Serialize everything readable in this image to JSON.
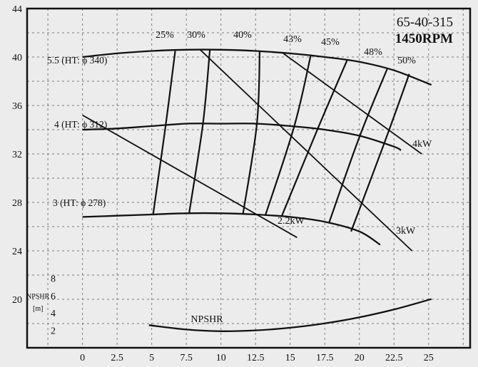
{
  "chart_data": {
    "type": "line",
    "title": "65-40-315",
    "subtitle": "1450RPM",
    "xlabel": "",
    "ylabel": "",
    "xlim": [
      -4,
      28
    ],
    "ylim": [
      16,
      44
    ],
    "grid": true,
    "x_ticks": [
      0,
      2.5,
      5,
      7.5,
      10,
      12.5,
      15,
      17.5,
      20,
      22.5,
      25
    ],
    "x_tick_labels": [
      "0",
      "2.5",
      "5",
      "7.5",
      "10",
      "12.5",
      "15",
      "17.5",
      "20",
      "22.5",
      "25"
    ],
    "y_ticks": [
      20,
      24,
      28,
      32,
      36,
      40,
      44
    ],
    "y_tick_labels": [
      "20",
      "24",
      "28",
      "32",
      "36",
      "40",
      "44"
    ],
    "head_curves": [
      {
        "name": "5.5 (HT: ϕ 340)",
        "x": [
          0,
          2.5,
          5,
          7.5,
          10,
          12.5,
          15,
          17.5,
          20,
          22.5,
          25.2
        ],
        "y": [
          40.0,
          40.3,
          40.5,
          40.6,
          40.6,
          40.5,
          40.3,
          40.0,
          39.6,
          38.9,
          37.7
        ]
      },
      {
        "name": "4 (HT: ϕ 312)",
        "x": [
          0,
          2.5,
          5,
          7.5,
          10,
          12.5,
          15,
          17.5,
          20,
          22.5,
          23
        ],
        "y": [
          34.0,
          34.1,
          34.3,
          34.5,
          34.5,
          34.5,
          34.3,
          34.0,
          33.5,
          32.6,
          32.3
        ]
      },
      {
        "name": "3 (HT: ϕ 278)",
        "x": [
          0,
          2.5,
          5,
          7.5,
          10,
          12.5,
          15,
          17.5,
          20,
          21.5
        ],
        "y": [
          26.8,
          26.9,
          27.0,
          27.1,
          27.1,
          27.0,
          26.8,
          26.4,
          25.6,
          24.5
        ]
      }
    ],
    "power_lines": [
      {
        "name": "2.2kW",
        "x": [
          0,
          15.5
        ],
        "y": [
          35.2,
          25.1
        ]
      },
      {
        "name": "3kW",
        "x": [
          8.5,
          23.8
        ],
        "y": [
          40.6,
          24.0
        ]
      },
      {
        "name": "4kW",
        "x": [
          14.5,
          24.5
        ],
        "y": [
          40.3,
          32.0
        ]
      }
    ],
    "efficiency_curves": [
      {
        "name": "25%",
        "x": [
          6.7,
          6.0,
          5.1
        ],
        "y": [
          40.5,
          34.3,
          27.0
        ]
      },
      {
        "name": "30%",
        "x": [
          9.2,
          8.7,
          7.7
        ],
        "y": [
          40.6,
          34.5,
          27.1
        ]
      },
      {
        "name": "40%",
        "x": [
          12.8,
          12.6,
          11.6
        ],
        "y": [
          40.5,
          34.5,
          27.1
        ]
      },
      {
        "name": "43%",
        "x": [
          16.5,
          15.3,
          13.2
        ],
        "y": [
          40.2,
          34.3,
          26.9
        ]
      },
      {
        "name": "45%",
        "x": [
          19.1,
          17.0,
          14.4
        ],
        "y": [
          39.7,
          34.1,
          26.9
        ]
      },
      {
        "name": "48%",
        "x": [
          22.0,
          20.0,
          17.8
        ],
        "y": [
          39.0,
          33.4,
          26.3
        ]
      },
      {
        "name": "50%",
        "x": [
          23.6,
          21.8,
          19.4
        ],
        "y": [
          38.6,
          32.9,
          25.6
        ]
      }
    ],
    "npshr": {
      "name": "NPSHR",
      "axis_label": "NPSHR",
      "axis_unit": "[m]",
      "ticks": [
        2,
        4,
        6,
        8
      ],
      "ylim": [
        0,
        10
      ],
      "x": [
        4.8,
        7.5,
        10,
        12.5,
        15,
        17.5,
        20,
        22.5,
        25.2
      ],
      "y": [
        2.6,
        2.1,
        1.9,
        2.0,
        2.3,
        2.8,
        3.5,
        4.4,
        5.6
      ]
    }
  }
}
